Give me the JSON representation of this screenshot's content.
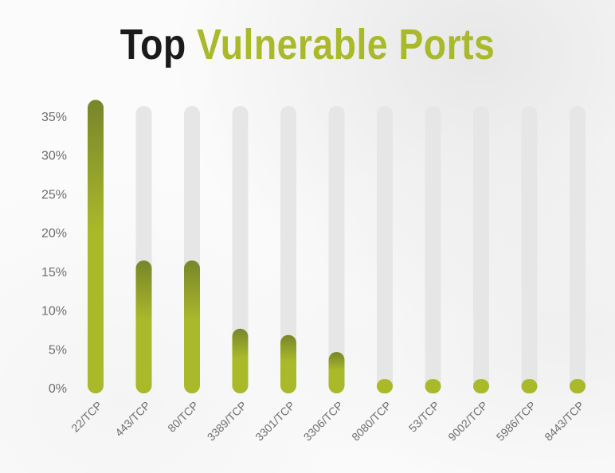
{
  "title": {
    "part1": "Top",
    "part2": "Vulnerable Ports"
  },
  "colors": {
    "accent": "#a9b92a",
    "accent_dark": "#78852a",
    "track": "#e6e6e6",
    "title_dark": "#1b1b1b",
    "label": "#6e6e6e"
  },
  "chart_data": {
    "type": "bar",
    "title": "Top Vulnerable Ports",
    "xlabel": "",
    "ylabel": "",
    "ylim": [
      0,
      35
    ],
    "y_ticks": [
      "0%",
      "5%",
      "10%",
      "15%",
      "20%",
      "25%",
      "30%",
      "35%"
    ],
    "grid": false,
    "categories": [
      "22/TCP",
      "443/TCP",
      "80/TCP",
      "3389/TCP",
      "3301/TCP",
      "3306/TCP",
      "8080/TCP",
      "53/TCP",
      "9002/TCP",
      "5986/TCP",
      "8443/TCP"
    ],
    "values": [
      36.5,
      15.8,
      15.8,
      7.0,
      6.2,
      4.0,
      0.5,
      0.5,
      0.5,
      0.5,
      0.5
    ]
  }
}
